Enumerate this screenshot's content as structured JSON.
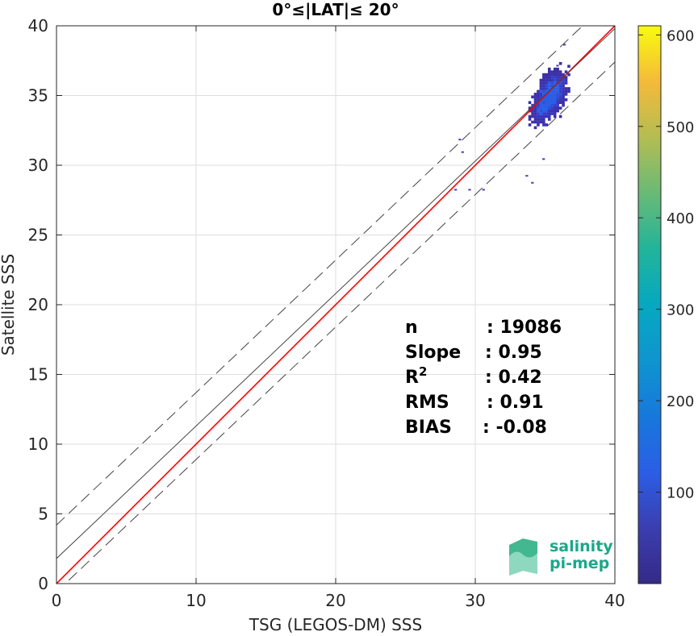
{
  "chart_data": {
    "type": "heatmap",
    "title": "0°≤|LAT|≤ 20°",
    "xlabel": "TSG (LEGOS-DM) SSS",
    "ylabel": "Satellite SSS",
    "xlim": [
      0,
      40
    ],
    "ylim": [
      0,
      40
    ],
    "xticks": [
      "0",
      "10",
      "20",
      "30",
      "40"
    ],
    "yticks": [
      "0",
      "5",
      "10",
      "15",
      "20",
      "25",
      "30",
      "35",
      "40"
    ],
    "grid": true,
    "colorbar": {
      "colormap": "parula",
      "range": [
        0,
        610
      ],
      "ticks": [
        "100",
        "200",
        "300",
        "400",
        "500",
        "600"
      ]
    },
    "lines": [
      {
        "name": "one-to-one",
        "color": "#ff0000",
        "style": "solid",
        "x": [
          0,
          40
        ],
        "y": [
          0,
          40
        ]
      },
      {
        "name": "regression",
        "color": "#444444",
        "style": "solid",
        "x": [
          0,
          40
        ],
        "y": [
          1.8,
          39.8
        ]
      },
      {
        "name": "upper-bound",
        "color": "#444444",
        "style": "dashed",
        "x": [
          0,
          40
        ],
        "y": [
          4.2,
          42.2
        ]
      },
      {
        "name": "lower-bound",
        "color": "#444444",
        "style": "dashed",
        "x": [
          0,
          40
        ],
        "y": [
          -0.6,
          37.4
        ]
      }
    ],
    "density_cluster": {
      "center_x": 35.2,
      "center_y": 34.8,
      "x_range": [
        32.0,
        36.8
      ],
      "y_range": [
        31.4,
        38.6
      ],
      "outliers": [
        {
          "x": 28.8,
          "y": 31.9
        },
        {
          "x": 29.0,
          "y": 31.0
        },
        {
          "x": 28.5,
          "y": 28.3
        },
        {
          "x": 29.5,
          "y": 28.3
        },
        {
          "x": 30.5,
          "y": 28.3
        },
        {
          "x": 34.0,
          "y": 28.8
        },
        {
          "x": 33.6,
          "y": 29.3
        },
        {
          "x": 34.8,
          "y": 30.5
        },
        {
          "x": 36.3,
          "y": 38.7
        },
        {
          "x": 35.8,
          "y": 37.2
        }
      ]
    },
    "stats": [
      {
        "label": "n",
        "value": ": 19086"
      },
      {
        "label": "Slope",
        "value": ": 0.95"
      },
      {
        "label": "R",
        "sup": "2",
        "value": ": 0.42"
      },
      {
        "label": "RMS",
        "value": ": 0.91"
      },
      {
        "label": "BIAS",
        "value": ": -0.08"
      }
    ]
  },
  "logo": {
    "line1": "salinity",
    "line2": "pi-mep",
    "color": "#1aa88a"
  }
}
